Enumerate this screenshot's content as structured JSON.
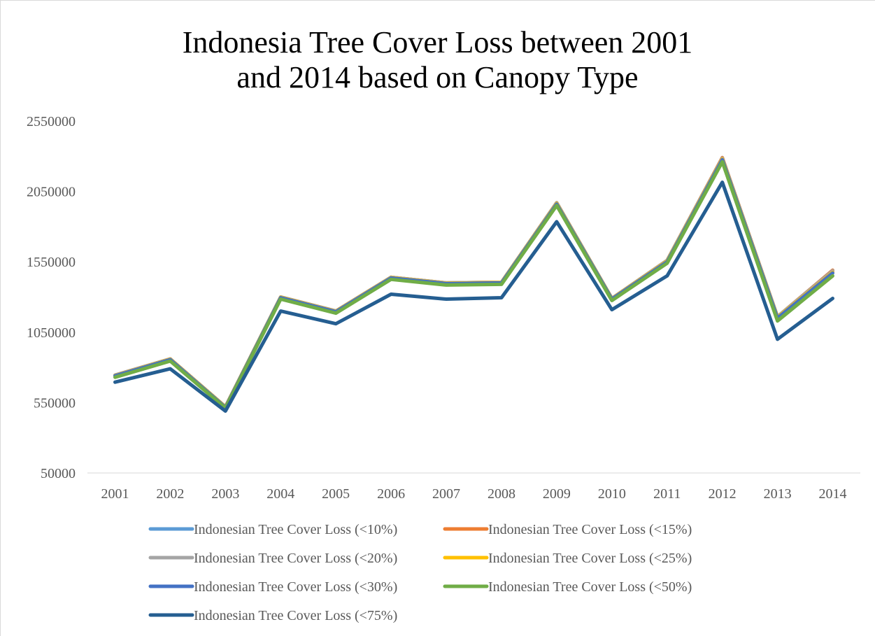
{
  "chart_data": {
    "type": "line",
    "title_line1": "Indonesia Tree Cover Loss between 2001",
    "title_line2": "and 2014 based on Canopy Type",
    "xlabel": "",
    "ylabel": "",
    "categories": [
      "2001",
      "2002",
      "2003",
      "2004",
      "2005",
      "2006",
      "2007",
      "2008",
      "2009",
      "2010",
      "2011",
      "2012",
      "2013",
      "2014"
    ],
    "y_ticks": [
      "2550000",
      "2050000",
      "1550000",
      "1050000",
      "550000",
      "50000"
    ],
    "y_tick_values": [
      2550000,
      2050000,
      1550000,
      1050000,
      550000,
      50000
    ],
    "ylim": [
      50000,
      2550000
    ],
    "grid": false,
    "legend_position": "bottom",
    "series": [
      {
        "name": "Indonesian Tree Cover Loss (<10%)",
        "color": "#5b9bd5",
        "values": [
          745000,
          860000,
          520000,
          1300000,
          1200000,
          1440000,
          1400000,
          1405000,
          1970000,
          1290000,
          1560000,
          2290000,
          1160000,
          1490000
        ]
      },
      {
        "name": "Indonesian Tree Cover Loss (<15%)",
        "color": "#ed7d31",
        "values": [
          745000,
          860000,
          520000,
          1300000,
          1200000,
          1440000,
          1400000,
          1405000,
          1970000,
          1290000,
          1560000,
          2290000,
          1160000,
          1490000
        ]
      },
      {
        "name": "Indonesian Tree Cover Loss (<20%)",
        "color": "#a5a5a5",
        "values": [
          745000,
          860000,
          520000,
          1300000,
          1200000,
          1440000,
          1400000,
          1405000,
          1970000,
          1290000,
          1560000,
          2285000,
          1160000,
          1485000
        ]
      },
      {
        "name": "Indonesian Tree Cover Loss (<25%)",
        "color": "#ffc000",
        "values": [
          742000,
          858000,
          518000,
          1298000,
          1198000,
          1438000,
          1398000,
          1403000,
          1965000,
          1288000,
          1555000,
          2280000,
          1155000,
          1475000
        ]
      },
      {
        "name": "Indonesian Tree Cover Loss (<30%)",
        "color": "#4472c4",
        "values": [
          740000,
          855000,
          515000,
          1295000,
          1195000,
          1435000,
          1395000,
          1400000,
          1960000,
          1285000,
          1550000,
          2275000,
          1150000,
          1470000
        ]
      },
      {
        "name": "Indonesian Tree Cover Loss (<50%)",
        "color": "#70ad47",
        "values": [
          730000,
          845000,
          510000,
          1285000,
          1185000,
          1425000,
          1385000,
          1390000,
          1950000,
          1275000,
          1540000,
          2260000,
          1130000,
          1450000
        ]
      },
      {
        "name": "Indonesian Tree Cover Loss (<75%)",
        "color": "#255e91",
        "values": [
          695000,
          790000,
          490000,
          1200000,
          1110000,
          1320000,
          1285000,
          1295000,
          1835000,
          1210000,
          1450000,
          2115000,
          1000000,
          1290000
        ]
      }
    ]
  }
}
